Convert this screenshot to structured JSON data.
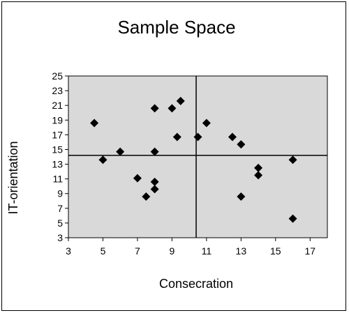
{
  "chart_data": {
    "type": "scatter",
    "title": "Sample Space",
    "xlabel": "Consecration",
    "ylabel": "IT-orientation",
    "xlim": [
      3,
      18
    ],
    "ylim": [
      3,
      25
    ],
    "x_ticks": [
      3,
      5,
      7,
      9,
      11,
      13,
      15,
      17
    ],
    "y_ticks": [
      3,
      5,
      7,
      9,
      11,
      13,
      15,
      17,
      19,
      21,
      23,
      25
    ],
    "grid": false,
    "legend": "none",
    "plot_background": "#d9d9d9",
    "marker": "diamond",
    "marker_color": "#000000",
    "reference_lines": {
      "vertical_x": 10.4,
      "horizontal_y": 14.2
    },
    "points": [
      {
        "x": 4.5,
        "y": 18.6
      },
      {
        "x": 5.0,
        "y": 13.6
      },
      {
        "x": 6.0,
        "y": 14.7
      },
      {
        "x": 7.0,
        "y": 11.1
      },
      {
        "x": 7.5,
        "y": 8.6
      },
      {
        "x": 8.0,
        "y": 20.6
      },
      {
        "x": 8.0,
        "y": 14.7
      },
      {
        "x": 8.0,
        "y": 10.6
      },
      {
        "x": 8.0,
        "y": 9.6
      },
      {
        "x": 9.0,
        "y": 20.6
      },
      {
        "x": 9.3,
        "y": 16.7
      },
      {
        "x": 9.5,
        "y": 21.6
      },
      {
        "x": 10.5,
        "y": 16.7
      },
      {
        "x": 11.0,
        "y": 18.6
      },
      {
        "x": 12.5,
        "y": 16.7
      },
      {
        "x": 13.0,
        "y": 15.7
      },
      {
        "x": 13.0,
        "y": 8.6
      },
      {
        "x": 14.0,
        "y": 12.5
      },
      {
        "x": 14.0,
        "y": 11.5
      },
      {
        "x": 16.0,
        "y": 13.6
      },
      {
        "x": 16.0,
        "y": 5.6
      }
    ]
  }
}
